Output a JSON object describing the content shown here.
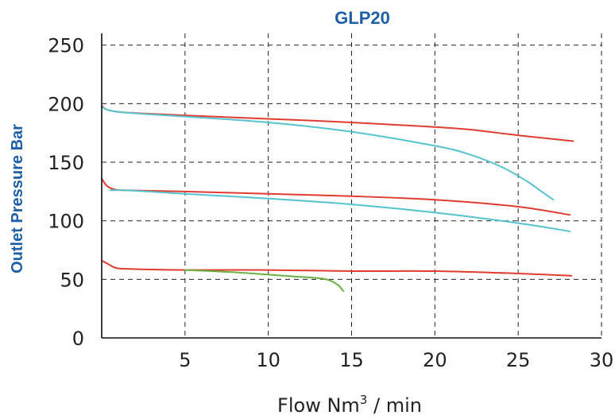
{
  "chart_data": {
    "type": "line",
    "title": "GLP20",
    "xlabel": "Flow Nm",
    "xlabel_superscript": "3",
    "xlabel_suffix": " / min",
    "ylabel": "Outlet Pressure Bar",
    "xlim": [
      0,
      30
    ],
    "ylim": [
      0,
      260
    ],
    "xticks": [
      5,
      10,
      15,
      20,
      25,
      30
    ],
    "yticks": [
      0,
      50,
      100,
      150,
      200,
      250
    ],
    "grid": true,
    "series": [
      {
        "color": "#e03c31",
        "points": [
          [
            0,
            198
          ],
          [
            0.3,
            195
          ],
          [
            1,
            193
          ],
          [
            2,
            192
          ],
          [
            5,
            190
          ],
          [
            10,
            187
          ],
          [
            15,
            184
          ],
          [
            20,
            180
          ],
          [
            22,
            178
          ],
          [
            25,
            173
          ],
          [
            28.3,
            168
          ]
        ]
      },
      {
        "color": "#56c3cf",
        "points": [
          [
            0,
            197
          ],
          [
            1,
            193
          ],
          [
            5,
            189
          ],
          [
            10,
            184
          ],
          [
            15,
            176
          ],
          [
            20,
            164
          ],
          [
            22,
            157
          ],
          [
            24,
            146
          ],
          [
            25.5,
            134
          ],
          [
            26.5,
            124
          ],
          [
            27.1,
            118
          ]
        ]
      },
      {
        "color": "#e03c31",
        "points": [
          [
            0,
            136
          ],
          [
            0.3,
            130
          ],
          [
            0.7,
            127
          ],
          [
            1.5,
            126
          ],
          [
            5,
            125
          ],
          [
            10,
            123
          ],
          [
            15,
            121
          ],
          [
            20,
            118
          ],
          [
            25,
            112
          ],
          [
            28.1,
            105
          ]
        ]
      },
      {
        "color": "#56c3cf",
        "points": [
          [
            0.5,
            126
          ],
          [
            1.5,
            126
          ],
          [
            5,
            123
          ],
          [
            10,
            119
          ],
          [
            15,
            114
          ],
          [
            20,
            107
          ],
          [
            25,
            98
          ],
          [
            28.1,
            91
          ]
        ]
      },
      {
        "color": "#e03c31",
        "points": [
          [
            0,
            66
          ],
          [
            0.4,
            63
          ],
          [
            0.8,
            60
          ],
          [
            1.5,
            59
          ],
          [
            5,
            58
          ],
          [
            10,
            58
          ],
          [
            15,
            57
          ],
          [
            20,
            57
          ],
          [
            25,
            55
          ],
          [
            28.2,
            53
          ]
        ]
      },
      {
        "color": "#6ab042",
        "points": [
          [
            5,
            58
          ],
          [
            8,
            56
          ],
          [
            11,
            53
          ],
          [
            13,
            51
          ],
          [
            13.7,
            49
          ],
          [
            14.2,
            45
          ],
          [
            14.5,
            40
          ]
        ]
      }
    ]
  }
}
